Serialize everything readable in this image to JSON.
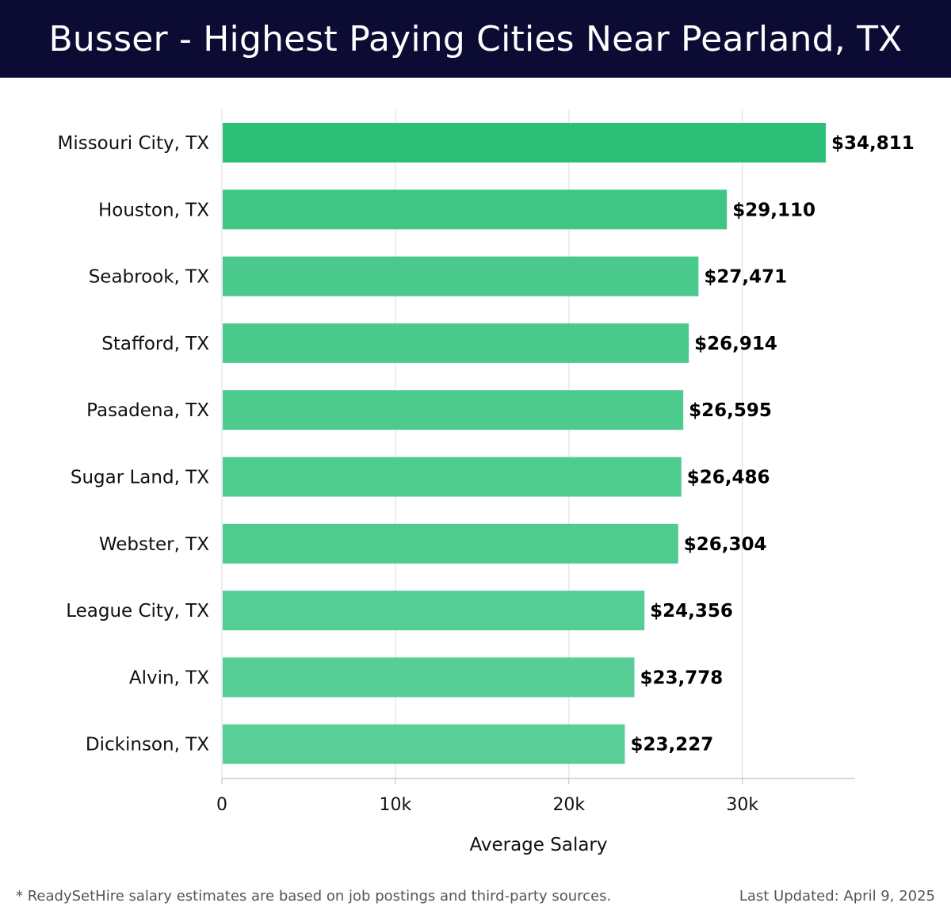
{
  "header": {
    "title": "Busser - Highest Paying Cities Near Pearland, TX"
  },
  "chart_data": {
    "type": "bar",
    "orientation": "horizontal",
    "title": "Busser - Highest Paying Cities Near Pearland, TX",
    "xlabel": "Average Salary",
    "ylabel": "",
    "xlim": [
      0,
      36500
    ],
    "xticks": [
      0,
      10000,
      20000,
      30000
    ],
    "xtick_labels": [
      "0",
      "10k",
      "20k",
      "30k"
    ],
    "grid": "vertical",
    "categories": [
      "Missouri City, TX",
      "Houston, TX",
      "Seabrook, TX",
      "Stafford, TX",
      "Pasadena, TX",
      "Sugar Land, TX",
      "Webster, TX",
      "League City, TX",
      "Alvin, TX",
      "Dickinson, TX"
    ],
    "values": [
      34811,
      29110,
      27471,
      26914,
      26595,
      26486,
      26304,
      24356,
      23778,
      23227
    ],
    "value_labels": [
      "$34,811",
      "$29,110",
      "$27,471",
      "$26,914",
      "$26,595",
      "$26,486",
      "$26,304",
      "$24,356",
      "$23,778",
      "$23,227"
    ],
    "colors": [
      "#2dbf78",
      "#3fc687",
      "#4ac98c",
      "#4bca8d",
      "#4dca8e",
      "#4ecb8f",
      "#4fcb90",
      "#55cd94",
      "#57ce96",
      "#59cf97"
    ]
  },
  "footer": {
    "note": "* ReadySetHire salary estimates are based on job postings and third-party sources.",
    "updated": "Last Updated: April 9, 2025"
  }
}
